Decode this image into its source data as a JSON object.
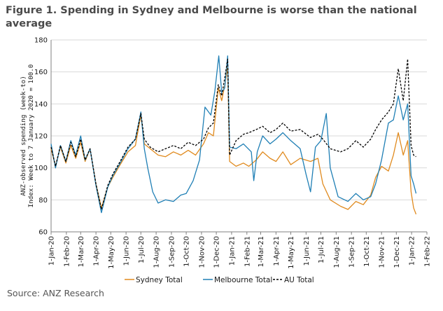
{
  "title": "Figure 1. Spending in Sydney and Melbourne is worse than the national average",
  "source": "Source: ANZ Research",
  "chart_data": {
    "type": "line",
    "ylabel_lines": [
      "ANZ-observed spending (week-to)",
      "Index: Week to 7 January 2020 = 100.0"
    ],
    "ylim": [
      60,
      180
    ],
    "yticks": [
      60,
      80,
      100,
      120,
      140,
      160,
      180
    ],
    "xrange": [
      "2020-01-01",
      "2022-02-01"
    ],
    "xticks": [
      {
        "date": "2020-01-01",
        "label": "1-Jan-20"
      },
      {
        "date": "2020-02-01",
        "label": "1-Feb-20"
      },
      {
        "date": "2020-03-01",
        "label": "1-Mar-20"
      },
      {
        "date": "2020-04-01",
        "label": "1-Apr-20"
      },
      {
        "date": "2020-05-01",
        "label": "1-May-20"
      },
      {
        "date": "2020-06-01",
        "label": "1-Jun-20"
      },
      {
        "date": "2020-07-01",
        "label": "1-Jul-20"
      },
      {
        "date": "2020-08-01",
        "label": "1-Aug-20"
      },
      {
        "date": "2020-09-01",
        "label": "1-Sep-20"
      },
      {
        "date": "2020-10-01",
        "label": "1-Oct-20"
      },
      {
        "date": "2020-11-01",
        "label": "1-Nov-20"
      },
      {
        "date": "2020-12-01",
        "label": "1-Dec-20"
      },
      {
        "date": "2021-01-01",
        "label": "1-Jan-21"
      },
      {
        "date": "2021-02-01",
        "label": "1-Feb-21"
      },
      {
        "date": "2021-03-01",
        "label": "1-Mar-21"
      },
      {
        "date": "2021-04-01",
        "label": "1-Apr-21"
      },
      {
        "date": "2021-05-01",
        "label": "1-May-21"
      },
      {
        "date": "2021-06-01",
        "label": "1-Jun-21"
      },
      {
        "date": "2021-07-01",
        "label": "1-Jul-21"
      },
      {
        "date": "2021-08-01",
        "label": "1-Aug-21"
      },
      {
        "date": "2021-09-01",
        "label": "1-Sep-21"
      },
      {
        "date": "2021-10-01",
        "label": "1-Oct-21"
      },
      {
        "date": "2021-11-01",
        "label": "1-Nov-21"
      },
      {
        "date": "2021-12-01",
        "label": "1-Dec-21"
      },
      {
        "date": "2022-01-01",
        "label": "1-Jan-22"
      },
      {
        "date": "2022-02-01",
        "label": "1-Feb-22"
      }
    ],
    "grid": "horizontal",
    "legend_position": "bottom",
    "series": [
      {
        "name": "Sydney Total",
        "color": "#E08A1E",
        "dash": "solid",
        "points": [
          [
            "2020-01-01",
            112
          ],
          [
            "2020-01-10",
            101
          ],
          [
            "2020-01-20",
            113
          ],
          [
            "2020-01-31",
            103
          ],
          [
            "2020-02-10",
            114
          ],
          [
            "2020-02-20",
            106
          ],
          [
            "2020-03-01",
            116
          ],
          [
            "2020-03-10",
            104
          ],
          [
            "2020-03-20",
            112
          ],
          [
            "2020-04-01",
            90
          ],
          [
            "2020-04-12",
            75
          ],
          [
            "2020-04-25",
            88
          ],
          [
            "2020-05-05",
            94
          ],
          [
            "2020-05-20",
            102
          ],
          [
            "2020-06-05",
            110
          ],
          [
            "2020-06-20",
            114
          ],
          [
            "2020-07-01",
            133
          ],
          [
            "2020-07-08",
            115
          ],
          [
            "2020-07-20",
            112
          ],
          [
            "2020-08-05",
            108
          ],
          [
            "2020-08-20",
            107
          ],
          [
            "2020-09-05",
            110
          ],
          [
            "2020-09-20",
            108
          ],
          [
            "2020-10-05",
            111
          ],
          [
            "2020-10-20",
            108
          ],
          [
            "2020-11-05",
            115
          ],
          [
            "2020-11-15",
            122
          ],
          [
            "2020-11-25",
            120
          ],
          [
            "2020-12-05",
            150
          ],
          [
            "2020-12-12",
            142
          ],
          [
            "2020-12-19",
            153
          ],
          [
            "2020-12-24",
            163
          ],
          [
            "2020-12-28",
            104
          ],
          [
            "2021-01-10",
            101
          ],
          [
            "2021-01-25",
            103
          ],
          [
            "2021-02-05",
            101
          ],
          [
            "2021-02-20",
            105
          ],
          [
            "2021-03-05",
            110
          ],
          [
            "2021-03-20",
            106
          ],
          [
            "2021-04-01",
            104
          ],
          [
            "2021-04-15",
            110
          ],
          [
            "2021-05-01",
            102
          ],
          [
            "2021-05-20",
            106
          ],
          [
            "2021-06-10",
            104
          ],
          [
            "2021-06-25",
            106
          ],
          [
            "2021-07-05",
            90
          ],
          [
            "2021-07-20",
            80
          ],
          [
            "2021-08-10",
            76
          ],
          [
            "2021-08-25",
            74
          ],
          [
            "2021-09-10",
            79
          ],
          [
            "2021-09-25",
            77
          ],
          [
            "2021-10-10",
            83
          ],
          [
            "2021-10-20",
            94
          ],
          [
            "2021-11-01",
            101
          ],
          [
            "2021-11-15",
            98
          ],
          [
            "2021-11-25",
            108
          ],
          [
            "2021-12-05",
            122
          ],
          [
            "2021-12-15",
            108
          ],
          [
            "2021-12-24",
            117
          ],
          [
            "2021-12-31",
            85
          ],
          [
            "2022-01-05",
            75
          ],
          [
            "2022-01-10",
            71
          ]
        ]
      },
      {
        "name": "Melbourne Total",
        "color": "#1F7FB5",
        "dash": "solid",
        "points": [
          [
            "2020-01-01",
            115
          ],
          [
            "2020-01-10",
            100
          ],
          [
            "2020-01-20",
            114
          ],
          [
            "2020-01-31",
            104
          ],
          [
            "2020-02-10",
            117
          ],
          [
            "2020-02-20",
            108
          ],
          [
            "2020-03-01",
            120
          ],
          [
            "2020-03-10",
            105
          ],
          [
            "2020-03-20",
            112
          ],
          [
            "2020-04-01",
            89
          ],
          [
            "2020-04-12",
            72
          ],
          [
            "2020-04-25",
            88
          ],
          [
            "2020-05-05",
            95
          ],
          [
            "2020-05-20",
            103
          ],
          [
            "2020-06-05",
            112
          ],
          [
            "2020-06-20",
            118
          ],
          [
            "2020-07-01",
            135
          ],
          [
            "2020-07-08",
            112
          ],
          [
            "2020-07-15",
            100
          ],
          [
            "2020-07-25",
            85
          ],
          [
            "2020-08-05",
            78
          ],
          [
            "2020-08-20",
            80
          ],
          [
            "2020-09-05",
            79
          ],
          [
            "2020-09-20",
            83
          ],
          [
            "2020-10-01",
            84
          ],
          [
            "2020-10-15",
            92
          ],
          [
            "2020-10-28",
            105
          ],
          [
            "2020-11-08",
            138
          ],
          [
            "2020-11-20",
            133
          ],
          [
            "2020-11-28",
            148
          ],
          [
            "2020-12-06",
            170
          ],
          [
            "2020-12-12",
            147
          ],
          [
            "2020-12-18",
            150
          ],
          [
            "2020-12-24",
            170
          ],
          [
            "2020-12-28",
            113
          ],
          [
            "2021-01-10",
            112
          ],
          [
            "2021-01-25",
            115
          ],
          [
            "2021-02-10",
            110
          ],
          [
            "2021-02-15",
            92
          ],
          [
            "2021-02-22",
            110
          ],
          [
            "2021-03-05",
            120
          ],
          [
            "2021-03-20",
            115
          ],
          [
            "2021-04-01",
            118
          ],
          [
            "2021-04-15",
            122
          ],
          [
            "2021-05-01",
            117
          ],
          [
            "2021-05-20",
            112
          ],
          [
            "2021-06-01",
            96
          ],
          [
            "2021-06-10",
            85
          ],
          [
            "2021-06-20",
            113
          ],
          [
            "2021-07-01",
            117
          ],
          [
            "2021-07-12",
            134
          ],
          [
            "2021-07-20",
            100
          ],
          [
            "2021-08-05",
            82
          ],
          [
            "2021-08-25",
            79
          ],
          [
            "2021-09-10",
            84
          ],
          [
            "2021-09-25",
            80
          ],
          [
            "2021-10-10",
            82
          ],
          [
            "2021-10-20",
            90
          ],
          [
            "2021-11-01",
            105
          ],
          [
            "2021-11-15",
            128
          ],
          [
            "2021-11-25",
            130
          ],
          [
            "2021-12-05",
            145
          ],
          [
            "2021-12-15",
            130
          ],
          [
            "2021-12-24",
            140
          ],
          [
            "2021-12-31",
            95
          ],
          [
            "2022-01-05",
            90
          ],
          [
            "2022-01-10",
            84
          ]
        ]
      },
      {
        "name": "AU Total",
        "color": "#000000",
        "dash": "3,2",
        "points": [
          [
            "2020-01-01",
            113
          ],
          [
            "2020-01-10",
            101
          ],
          [
            "2020-01-20",
            114
          ],
          [
            "2020-01-31",
            104
          ],
          [
            "2020-02-10",
            116
          ],
          [
            "2020-02-20",
            107
          ],
          [
            "2020-03-01",
            118
          ],
          [
            "2020-03-10",
            105
          ],
          [
            "2020-03-20",
            112
          ],
          [
            "2020-04-01",
            90
          ],
          [
            "2020-04-12",
            74
          ],
          [
            "2020-04-25",
            89
          ],
          [
            "2020-05-05",
            96
          ],
          [
            "2020-05-20",
            104
          ],
          [
            "2020-06-05",
            113
          ],
          [
            "2020-06-20",
            118
          ],
          [
            "2020-07-01",
            134
          ],
          [
            "2020-07-08",
            118
          ],
          [
            "2020-07-20",
            113
          ],
          [
            "2020-08-05",
            110
          ],
          [
            "2020-08-20",
            112
          ],
          [
            "2020-09-05",
            114
          ],
          [
            "2020-09-20",
            112
          ],
          [
            "2020-10-05",
            116
          ],
          [
            "2020-10-20",
            114
          ],
          [
            "2020-11-05",
            118
          ],
          [
            "2020-11-15",
            125
          ],
          [
            "2020-11-25",
            128
          ],
          [
            "2020-12-05",
            152
          ],
          [
            "2020-12-12",
            145
          ],
          [
            "2020-12-19",
            158
          ],
          [
            "2020-12-24",
            168
          ],
          [
            "2020-12-28",
            108
          ],
          [
            "2021-01-10",
            117
          ],
          [
            "2021-01-25",
            121
          ],
          [
            "2021-02-05",
            122
          ],
          [
            "2021-02-20",
            124
          ],
          [
            "2021-03-05",
            126
          ],
          [
            "2021-03-20",
            122
          ],
          [
            "2021-04-01",
            124
          ],
          [
            "2021-04-15",
            128
          ],
          [
            "2021-05-01",
            123
          ],
          [
            "2021-05-20",
            124
          ],
          [
            "2021-06-10",
            119
          ],
          [
            "2021-06-25",
            121
          ],
          [
            "2021-07-05",
            118
          ],
          [
            "2021-07-20",
            112
          ],
          [
            "2021-08-10",
            110
          ],
          [
            "2021-08-25",
            112
          ],
          [
            "2021-09-10",
            117
          ],
          [
            "2021-09-25",
            113
          ],
          [
            "2021-10-10",
            118
          ],
          [
            "2021-10-20",
            124
          ],
          [
            "2021-11-01",
            130
          ],
          [
            "2021-11-15",
            135
          ],
          [
            "2021-11-25",
            140
          ],
          [
            "2021-12-05",
            162
          ],
          [
            "2021-12-15",
            142
          ],
          [
            "2021-12-24",
            168
          ],
          [
            "2021-12-31",
            114
          ],
          [
            "2022-01-05",
            108
          ],
          [
            "2022-01-10",
            107
          ]
        ]
      }
    ]
  }
}
